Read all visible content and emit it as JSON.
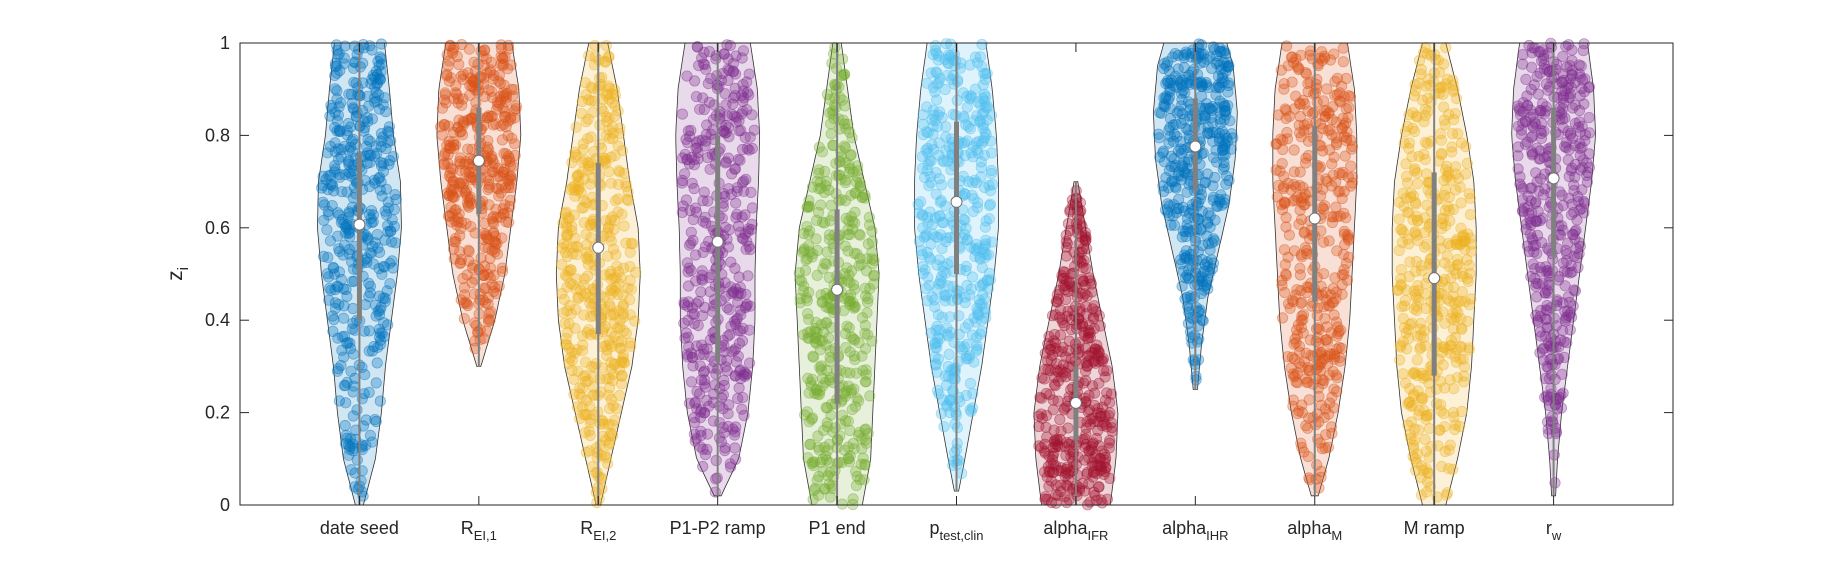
{
  "chart_data": {
    "type": "violin",
    "ylabel": "z",
    "ylabel_sub": "i",
    "ylim": [
      0,
      1
    ],
    "yticks": [
      0,
      0.2,
      0.4,
      0.6,
      0.8,
      1
    ],
    "ytick_labels": [
      "0",
      "0.2",
      "0.4",
      "0.6",
      "0.8",
      "1"
    ],
    "grid": false,
    "categories": [
      {
        "base": "date seed",
        "sub": ""
      },
      {
        "base": "R",
        "sub": "EI,1"
      },
      {
        "base": "R",
        "sub": "EI,2"
      },
      {
        "base": "P1-P2 ramp",
        "sub": ""
      },
      {
        "base": "P1 end",
        "sub": ""
      },
      {
        "base": "p",
        "sub": "test,clin"
      },
      {
        "base": "alpha",
        "sub": "IFR"
      },
      {
        "base": "alpha",
        "sub": "IHR"
      },
      {
        "base": "alpha",
        "sub": "M"
      },
      {
        "base": "M ramp",
        "sub": ""
      },
      {
        "base": "r",
        "sub": "w"
      }
    ],
    "series": [
      {
        "color": "#0072bd",
        "min": 0.0,
        "q1": 0.4,
        "median": 0.607,
        "q3": 0.76,
        "max": 1.0,
        "density": [
          [
            0.0,
            0.04
          ],
          [
            0.1,
            0.16
          ],
          [
            0.2,
            0.22
          ],
          [
            0.3,
            0.26
          ],
          [
            0.4,
            0.32
          ],
          [
            0.5,
            0.38
          ],
          [
            0.6,
            0.42
          ],
          [
            0.7,
            0.41
          ],
          [
            0.8,
            0.34
          ],
          [
            0.9,
            0.3
          ],
          [
            1.0,
            0.25
          ]
        ]
      },
      {
        "color": "#d95319",
        "min": 0.3,
        "q1": 0.63,
        "median": 0.745,
        "q3": 0.86,
        "max": 1.0,
        "density": [
          [
            0.3,
            0.02
          ],
          [
            0.4,
            0.16
          ],
          [
            0.5,
            0.26
          ],
          [
            0.6,
            0.32
          ],
          [
            0.7,
            0.38
          ],
          [
            0.8,
            0.42
          ],
          [
            0.9,
            0.4
          ],
          [
            1.0,
            0.33
          ]
        ]
      },
      {
        "color": "#edb120",
        "min": 0.0,
        "q1": 0.37,
        "median": 0.557,
        "q3": 0.74,
        "max": 1.0,
        "density": [
          [
            0.0,
            0.02
          ],
          [
            0.1,
            0.12
          ],
          [
            0.2,
            0.22
          ],
          [
            0.3,
            0.32
          ],
          [
            0.4,
            0.38
          ],
          [
            0.5,
            0.4
          ],
          [
            0.6,
            0.38
          ],
          [
            0.7,
            0.3
          ],
          [
            0.8,
            0.24
          ],
          [
            0.9,
            0.18
          ],
          [
            1.0,
            0.09
          ]
        ]
      },
      {
        "color": "#7e2f8e",
        "min": 0.02,
        "q1": 0.31,
        "median": 0.57,
        "q3": 0.8,
        "max": 1.0,
        "density": [
          [
            0.02,
            0.03
          ],
          [
            0.1,
            0.18
          ],
          [
            0.2,
            0.26
          ],
          [
            0.3,
            0.3
          ],
          [
            0.4,
            0.32
          ],
          [
            0.5,
            0.32
          ],
          [
            0.6,
            0.33
          ],
          [
            0.7,
            0.35
          ],
          [
            0.8,
            0.36
          ],
          [
            0.9,
            0.34
          ],
          [
            1.0,
            0.28
          ]
        ]
      },
      {
        "color": "#77ac30",
        "min": 0.0,
        "q1": 0.22,
        "median": 0.466,
        "q3": 0.64,
        "max": 1.0,
        "density": [
          [
            0.0,
            0.24
          ],
          [
            0.1,
            0.32
          ],
          [
            0.2,
            0.34
          ],
          [
            0.3,
            0.36
          ],
          [
            0.4,
            0.38
          ],
          [
            0.5,
            0.4
          ],
          [
            0.6,
            0.36
          ],
          [
            0.7,
            0.26
          ],
          [
            0.8,
            0.16
          ],
          [
            0.9,
            0.1
          ],
          [
            1.0,
            0.04
          ]
        ]
      },
      {
        "color": "#4dbeee",
        "min": 0.03,
        "q1": 0.5,
        "median": 0.656,
        "q3": 0.83,
        "max": 1.0,
        "density": [
          [
            0.03,
            0.02
          ],
          [
            0.1,
            0.08
          ],
          [
            0.2,
            0.16
          ],
          [
            0.3,
            0.24
          ],
          [
            0.4,
            0.3
          ],
          [
            0.5,
            0.36
          ],
          [
            0.6,
            0.4
          ],
          [
            0.7,
            0.4
          ],
          [
            0.8,
            0.38
          ],
          [
            0.9,
            0.34
          ],
          [
            1.0,
            0.28
          ]
        ]
      },
      {
        "color": "#a2142f",
        "min": 0.0,
        "q1": 0.14,
        "median": 0.221,
        "q3": 0.3,
        "max": 0.7,
        "density": [
          [
            0.0,
            0.36
          ],
          [
            0.1,
            0.42
          ],
          [
            0.2,
            0.44
          ],
          [
            0.3,
            0.38
          ],
          [
            0.4,
            0.28
          ],
          [
            0.5,
            0.18
          ],
          [
            0.6,
            0.1
          ],
          [
            0.7,
            0.02
          ]
        ]
      },
      {
        "color": "#0072bd",
        "min": 0.25,
        "q1": 0.68,
        "median": 0.776,
        "q3": 0.88,
        "max": 1.0,
        "density": [
          [
            0.25,
            0.02
          ],
          [
            0.35,
            0.06
          ],
          [
            0.45,
            0.12
          ],
          [
            0.55,
            0.22
          ],
          [
            0.65,
            0.32
          ],
          [
            0.75,
            0.38
          ],
          [
            0.85,
            0.4
          ],
          [
            0.95,
            0.36
          ],
          [
            1.0,
            0.3
          ]
        ]
      },
      {
        "color": "#d95319",
        "min": 0.02,
        "q1": 0.44,
        "median": 0.62,
        "q3": 0.82,
        "max": 1.0,
        "density": [
          [
            0.02,
            0.03
          ],
          [
            0.1,
            0.12
          ],
          [
            0.2,
            0.2
          ],
          [
            0.3,
            0.26
          ],
          [
            0.4,
            0.3
          ],
          [
            0.5,
            0.32
          ],
          [
            0.6,
            0.34
          ],
          [
            0.7,
            0.36
          ],
          [
            0.8,
            0.36
          ],
          [
            0.9,
            0.34
          ],
          [
            1.0,
            0.28
          ]
        ]
      },
      {
        "color": "#edb120",
        "min": 0.0,
        "q1": 0.28,
        "median": 0.491,
        "q3": 0.72,
        "max": 1.0,
        "density": [
          [
            0.0,
            0.1
          ],
          [
            0.1,
            0.2
          ],
          [
            0.2,
            0.28
          ],
          [
            0.3,
            0.32
          ],
          [
            0.4,
            0.34
          ],
          [
            0.5,
            0.36
          ],
          [
            0.6,
            0.36
          ],
          [
            0.7,
            0.34
          ],
          [
            0.8,
            0.28
          ],
          [
            0.9,
            0.2
          ],
          [
            1.0,
            0.1
          ]
        ]
      },
      {
        "color": "#7e2f8e",
        "min": 0.02,
        "q1": 0.54,
        "median": 0.707,
        "q3": 0.86,
        "max": 1.0,
        "density": [
          [
            0.02,
            0.02
          ],
          [
            0.1,
            0.04
          ],
          [
            0.2,
            0.08
          ],
          [
            0.3,
            0.14
          ],
          [
            0.4,
            0.2
          ],
          [
            0.5,
            0.26
          ],
          [
            0.6,
            0.32
          ],
          [
            0.7,
            0.38
          ],
          [
            0.8,
            0.42
          ],
          [
            0.9,
            0.4
          ],
          [
            1.0,
            0.34
          ]
        ]
      }
    ]
  }
}
